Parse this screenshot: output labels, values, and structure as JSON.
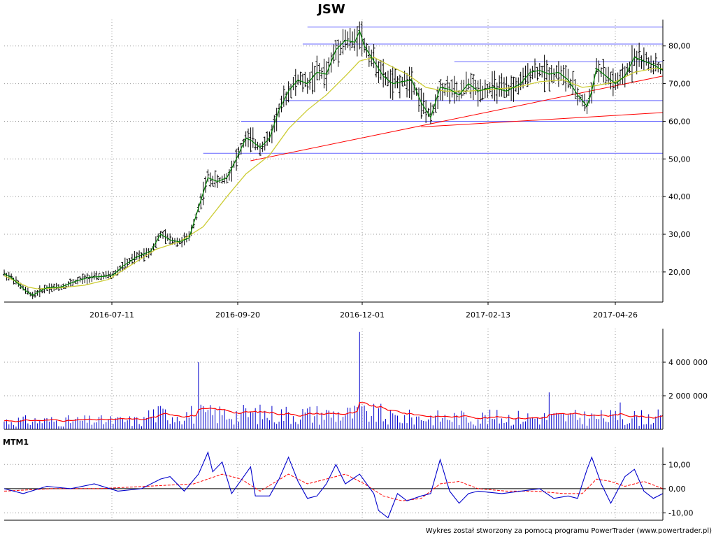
{
  "title": "JSW",
  "credit": "Wykres został stworzony za pomocą programu PowerTrader (www.powertrader.pl)",
  "colors": {
    "price": "#000000",
    "ma_short": "#008000",
    "ma_long": "#cccc33",
    "support": "#6666ff",
    "trend": "#ff0000",
    "volume_bar": "#0000cc",
    "volume_ma": "#ff0000",
    "mtm": "#0000cc",
    "mtm_signal": "#ff0000"
  },
  "chart_data": [
    {
      "type": "line",
      "name": "price",
      "x_labels": [
        "2016-07-11",
        "2016-09-20",
        "2016-12-01",
        "2017-02-13",
        "2017-04-26"
      ],
      "y_ticks": [
        "20,00",
        "30,00",
        "40,00",
        "50,00",
        "60,00",
        "70,00",
        "80,00"
      ],
      "ylim": [
        12,
        87
      ],
      "grid": true,
      "series": [
        {
          "points": [
            [
              0,
              19.5
            ],
            [
              3,
              18.5
            ],
            [
              6,
              16.8
            ],
            [
              9,
              15.0
            ],
            [
              12,
              13.8
            ],
            [
              14,
              14.5
            ],
            [
              18,
              15.8
            ],
            [
              24,
              16.0
            ],
            [
              30,
              17.5
            ],
            [
              36,
              18.6
            ],
            [
              42,
              18.8
            ],
            [
              46,
              19.2
            ],
            [
              50,
              21.5
            ],
            [
              56,
              24.0
            ],
            [
              62,
              25.6
            ],
            [
              66,
              30.0
            ],
            [
              70,
              28.5
            ],
            [
              74,
              28.0
            ],
            [
              78,
              29.0
            ],
            [
              82,
              37.0
            ],
            [
              86,
              45.0
            ],
            [
              90,
              44.0
            ],
            [
              94,
              45.0
            ],
            [
              98,
              50.0
            ],
            [
              102,
              55.5
            ],
            [
              104,
              55.0
            ],
            [
              108,
              53.0
            ],
            [
              112,
              55.5
            ],
            [
              116,
              63.0
            ],
            [
              120,
              68.0
            ],
            [
              124,
              71.0
            ],
            [
              128,
              70.0
            ],
            [
              132,
              73.0
            ],
            [
              136,
              72.5
            ],
            [
              140,
              79.0
            ],
            [
              144,
              81.5
            ],
            [
              148,
              81.0
            ],
            [
              150,
              84.0
            ],
            [
              152,
              80.0
            ],
            [
              154,
              78.0
            ],
            [
              156,
              76.0
            ],
            [
              158,
              74.0
            ],
            [
              160,
              72.0
            ],
            [
              164,
              70.0
            ],
            [
              168,
              70.5
            ],
            [
              172,
              71.0
            ],
            [
              176,
              65.0
            ],
            [
              180,
              61.0
            ],
            [
              184,
              69.0
            ],
            [
              188,
              68.5
            ],
            [
              192,
              67.0
            ],
            [
              196,
              70.0
            ],
            [
              200,
              68.0
            ],
            [
              206,
              69.0
            ],
            [
              212,
              68.0
            ],
            [
              218,
              70.0
            ],
            [
              222,
              73.0
            ],
            [
              226,
              73.5
            ],
            [
              230,
              72.5
            ],
            [
              234,
              73.0
            ],
            [
              238,
              71.0
            ],
            [
              242,
              67.0
            ],
            [
              246,
              64.0
            ],
            [
              248,
              68.0
            ],
            [
              250,
              74.0
            ],
            [
              254,
              72.0
            ],
            [
              258,
              70.0
            ],
            [
              262,
              72.0
            ],
            [
              266,
              77.0
            ],
            [
              270,
              76.0
            ],
            [
              274,
              75.0
            ],
            [
              278,
              73.5
            ]
          ]
        },
        {
          "points": [
            [
              0,
              19.0
            ],
            [
              10,
              16.0
            ],
            [
              14,
              15.5
            ],
            [
              24,
              15.8
            ],
            [
              34,
              16.5
            ],
            [
              44,
              18.0
            ],
            [
              54,
              22.0
            ],
            [
              64,
              26.0
            ],
            [
              74,
              28.0
            ],
            [
              84,
              32.0
            ],
            [
              94,
              40.0
            ],
            [
              102,
              46.0
            ],
            [
              112,
              51.0
            ],
            [
              120,
              58.0
            ],
            [
              128,
              63.0
            ],
            [
              136,
              67.0
            ],
            [
              144,
              72.0
            ],
            [
              150,
              76.0
            ],
            [
              156,
              77.0
            ],
            [
              162,
              75.0
            ],
            [
              170,
              72.5
            ],
            [
              178,
              69.0
            ],
            [
              186,
              68.0
            ],
            [
              196,
              68.0
            ],
            [
              206,
              68.5
            ],
            [
              216,
              69.0
            ],
            [
              226,
              70.5
            ],
            [
              236,
              71.0
            ],
            [
              244,
              69.0
            ],
            [
              250,
              69.5
            ],
            [
              258,
              70.5
            ],
            [
              266,
              73.0
            ],
            [
              274,
              74.0
            ],
            [
              278,
              74.0
            ]
          ]
        }
      ],
      "trend_lines": [
        {
          "from": [
            104,
            49.5
          ],
          "to": [
            278,
            72.0
          ]
        },
        {
          "from": [
            176,
            58.5
          ],
          "to": [
            278,
            62.3
          ]
        }
      ],
      "support_lines": [
        {
          "from_x": 84,
          "value": 51.5
        },
        {
          "from_x": 100,
          "value": 60.0
        },
        {
          "from_x": 118,
          "value": 65.5
        },
        {
          "from_x": 190,
          "value": 75.8
        },
        {
          "from_x": 126,
          "value": 80.5
        },
        {
          "from_x": 128,
          "value": 85.0
        }
      ]
    },
    {
      "type": "bar",
      "name": "volume",
      "y_ticks": [
        "2 000 000",
        "4 000 000"
      ],
      "ylim": [
        0,
        6000000
      ],
      "grid": true,
      "spikes": [
        [
          82,
          4000000
        ],
        [
          150,
          5800000
        ],
        [
          230,
          2200000
        ],
        [
          260,
          1600000
        ]
      ]
    },
    {
      "type": "line",
      "name": "MTM1",
      "label": "MTM1",
      "y_ticks": [
        "10,00",
        "0,00",
        "-10,00"
      ],
      "ylim": [
        -13,
        17
      ],
      "grid": true,
      "series": [
        {
          "points": [
            [
              0,
              0
            ],
            [
              8,
              -2
            ],
            [
              18,
              1
            ],
            [
              28,
              0
            ],
            [
              38,
              2
            ],
            [
              48,
              -1
            ],
            [
              58,
              0
            ],
            [
              66,
              4
            ],
            [
              70,
              5
            ],
            [
              76,
              -1
            ],
            [
              82,
              6
            ],
            [
              86,
              15
            ],
            [
              88,
              7
            ],
            [
              92,
              11
            ],
            [
              96,
              -2
            ],
            [
              104,
              9
            ],
            [
              106,
              -3
            ],
            [
              112,
              -3
            ],
            [
              116,
              4
            ],
            [
              120,
              13
            ],
            [
              124,
              3
            ],
            [
              128,
              -4
            ],
            [
              132,
              -3
            ],
            [
              136,
              2
            ],
            [
              140,
              10
            ],
            [
              144,
              2
            ],
            [
              150,
              6
            ],
            [
              156,
              -2
            ],
            [
              158,
              -9
            ],
            [
              162,
              -12
            ],
            [
              166,
              -2
            ],
            [
              170,
              -5
            ],
            [
              176,
              -3
            ],
            [
              180,
              -2
            ],
            [
              184,
              12
            ],
            [
              188,
              -1
            ],
            [
              192,
              -6
            ],
            [
              196,
              -2
            ],
            [
              200,
              -1
            ],
            [
              210,
              -2
            ],
            [
              218,
              -1
            ],
            [
              226,
              0
            ],
            [
              232,
              -4
            ],
            [
              238,
              -3
            ],
            [
              242,
              -4
            ],
            [
              246,
              8
            ],
            [
              248,
              13
            ],
            [
              252,
              2
            ],
            [
              256,
              -6
            ],
            [
              262,
              5
            ],
            [
              266,
              8
            ],
            [
              270,
              -1
            ],
            [
              274,
              -4
            ],
            [
              278,
              -2
            ]
          ]
        },
        {
          "points": [
            [
              0,
              -1
            ],
            [
              20,
              0
            ],
            [
              40,
              0
            ],
            [
              60,
              1
            ],
            [
              80,
              2
            ],
            [
              92,
              6
            ],
            [
              100,
              4
            ],
            [
              108,
              -1
            ],
            [
              120,
              6
            ],
            [
              128,
              2
            ],
            [
              136,
              4
            ],
            [
              144,
              6
            ],
            [
              152,
              2
            ],
            [
              160,
              -3
            ],
            [
              168,
              -5
            ],
            [
              176,
              -4
            ],
            [
              184,
              2
            ],
            [
              192,
              3
            ],
            [
              200,
              0
            ],
            [
              212,
              -1
            ],
            [
              224,
              -1
            ],
            [
              236,
              -2
            ],
            [
              244,
              -2
            ],
            [
              250,
              4
            ],
            [
              256,
              3
            ],
            [
              262,
              1
            ],
            [
              270,
              3
            ],
            [
              278,
              0
            ]
          ]
        }
      ]
    }
  ]
}
